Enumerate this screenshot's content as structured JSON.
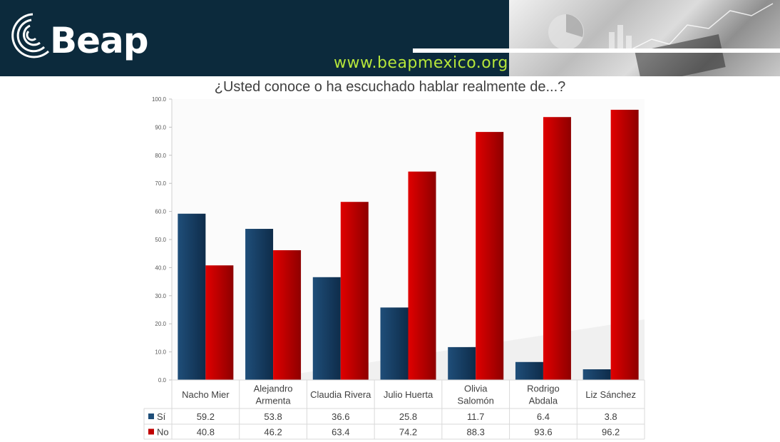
{
  "header": {
    "logo_text": "Beap",
    "website": "www.beapmexico.org"
  },
  "chart_data": {
    "type": "bar",
    "title": "¿Usted conoce o ha escuchado hablar realmente de...?",
    "categories": [
      [
        "Nacho Mier"
      ],
      [
        "Alejandro",
        "Armenta"
      ],
      [
        "Claudia Rivera"
      ],
      [
        "Julio Huerta"
      ],
      [
        "Olivia",
        "Salomón"
      ],
      [
        "Rodrigo",
        "Abdala"
      ],
      [
        "Liz Sánchez"
      ]
    ],
    "series": [
      {
        "name": "Sí",
        "color": "#1f4e79",
        "values": [
          "59.2",
          "53.8",
          "36.6",
          "25.8",
          "11.7",
          "6.4",
          "3.8"
        ]
      },
      {
        "name": "No",
        "color": "#c00000",
        "values": [
          "40.8",
          "46.2",
          "63.4",
          "74.2",
          "88.3",
          "93.6",
          "96.2"
        ]
      }
    ],
    "y_ticks": [
      "0.0",
      "10.0",
      "20.0",
      "30.0",
      "40.0",
      "50.0",
      "60.0",
      "70.0",
      "80.0",
      "90.0",
      "100.0"
    ],
    "ylim": [
      0,
      100
    ],
    "grid": false,
    "legend": "data-table"
  }
}
